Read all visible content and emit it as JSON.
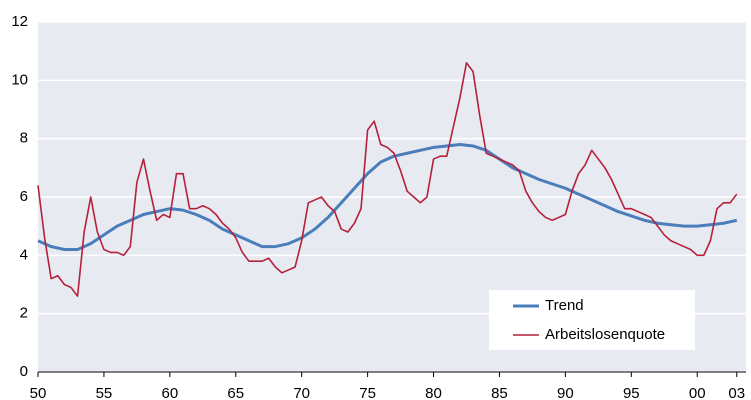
{
  "chart_data": {
    "type": "line",
    "xlim": [
      1950,
      2003.7
    ],
    "ylim": [
      0,
      12
    ],
    "yticks": [
      0,
      2,
      4,
      6,
      8,
      10,
      12
    ],
    "xticks": [
      {
        "value": 1950,
        "label": "50"
      },
      {
        "value": 1955,
        "label": "55"
      },
      {
        "value": 1960,
        "label": "60"
      },
      {
        "value": 1965,
        "label": "65"
      },
      {
        "value": 1970,
        "label": "70"
      },
      {
        "value": 1975,
        "label": "75"
      },
      {
        "value": 1980,
        "label": "80"
      },
      {
        "value": 1985,
        "label": "85"
      },
      {
        "value": 1990,
        "label": "90"
      },
      {
        "value": 1995,
        "label": "95"
      },
      {
        "value": 2000,
        "label": "00"
      },
      {
        "value": 2003,
        "label": "03"
      }
    ],
    "grid": true,
    "legend": "lower right",
    "series": [
      {
        "name": "Trend",
        "color": "#4a7ebb",
        "x": [
          1950,
          1951,
          1952,
          1953,
          1954,
          1955,
          1956,
          1957,
          1958,
          1959,
          1960,
          1961,
          1962,
          1963,
          1964,
          1965,
          1966,
          1967,
          1968,
          1969,
          1970,
          1971,
          1972,
          1973,
          1974,
          1975,
          1976,
          1977,
          1978,
          1979,
          1980,
          1981,
          1982,
          1983,
          1984,
          1985,
          1986,
          1987,
          1988,
          1989,
          1990,
          1991,
          1992,
          1993,
          1994,
          1995,
          1996,
          1997,
          1998,
          1999,
          2000,
          2001,
          2002,
          2003
        ],
        "values": [
          4.5,
          4.3,
          4.2,
          4.2,
          4.4,
          4.7,
          5.0,
          5.2,
          5.4,
          5.5,
          5.6,
          5.55,
          5.4,
          5.2,
          4.9,
          4.7,
          4.5,
          4.3,
          4.3,
          4.4,
          4.6,
          4.9,
          5.3,
          5.8,
          6.3,
          6.8,
          7.2,
          7.4,
          7.5,
          7.6,
          7.7,
          7.75,
          7.8,
          7.75,
          7.6,
          7.3,
          7.0,
          6.8,
          6.6,
          6.45,
          6.3,
          6.1,
          5.9,
          5.7,
          5.5,
          5.35,
          5.2,
          5.1,
          5.05,
          5.0,
          5.0,
          5.05,
          5.1,
          5.2
        ]
      },
      {
        "name": "Arbeitslosenquote",
        "color": "#b5203a",
        "x": [
          1950,
          1950.5,
          1951,
          1951.5,
          1952,
          1952.5,
          1953,
          1953.5,
          1954,
          1954.5,
          1955,
          1955.5,
          1956,
          1956.5,
          1957,
          1957.5,
          1958,
          1958.5,
          1959,
          1959.5,
          1960,
          1960.5,
          1961,
          1961.5,
          1962,
          1962.5,
          1963,
          1963.5,
          1964,
          1964.5,
          1965,
          1965.5,
          1966,
          1966.5,
          1967,
          1967.5,
          1968,
          1968.5,
          1969,
          1969.5,
          1970,
          1970.5,
          1971,
          1971.5,
          1972,
          1972.5,
          1973,
          1973.5,
          1974,
          1974.5,
          1975,
          1975.5,
          1976,
          1976.5,
          1977,
          1977.5,
          1978,
          1978.5,
          1979,
          1979.5,
          1980,
          1980.5,
          1981,
          1981.5,
          1982,
          1982.5,
          1983,
          1983.5,
          1984,
          1984.5,
          1985,
          1985.5,
          1986,
          1986.5,
          1987,
          1987.5,
          1988,
          1988.5,
          1989,
          1989.5,
          1990,
          1990.5,
          1991,
          1991.5,
          1992,
          1992.5,
          1993,
          1993.5,
          1994,
          1994.5,
          1995,
          1995.5,
          1996,
          1996.5,
          1997,
          1997.5,
          1998,
          1998.5,
          1999,
          1999.5,
          2000,
          2000.5,
          2001,
          2001.5,
          2002,
          2002.5,
          2003
        ],
        "values": [
          6.4,
          4.6,
          3.2,
          3.3,
          3.0,
          2.9,
          2.6,
          4.8,
          6.0,
          4.8,
          4.2,
          4.1,
          4.1,
          4.0,
          4.3,
          6.5,
          7.3,
          6.2,
          5.2,
          5.4,
          5.3,
          6.8,
          6.8,
          5.6,
          5.6,
          5.7,
          5.6,
          5.4,
          5.1,
          4.9,
          4.6,
          4.1,
          3.8,
          3.8,
          3.8,
          3.9,
          3.6,
          3.4,
          3.5,
          3.6,
          4.5,
          5.8,
          5.9,
          6.0,
          5.7,
          5.5,
          4.9,
          4.8,
          5.1,
          5.6,
          8.3,
          8.6,
          7.8,
          7.7,
          7.5,
          6.9,
          6.2,
          6.0,
          5.8,
          6.0,
          7.3,
          7.4,
          7.4,
          8.4,
          9.4,
          10.6,
          10.3,
          8.8,
          7.5,
          7.4,
          7.3,
          7.2,
          7.1,
          6.9,
          6.2,
          5.8,
          5.5,
          5.3,
          5.2,
          5.3,
          5.4,
          6.2,
          6.8,
          7.1,
          7.6,
          7.3,
          7.0,
          6.6,
          6.1,
          5.6,
          5.6,
          5.5,
          5.4,
          5.3,
          5.0,
          4.7,
          4.5,
          4.4,
          4.3,
          4.2,
          4.0,
          4.0,
          4.5,
          5.6,
          5.8,
          5.8,
          6.1
        ]
      }
    ]
  }
}
